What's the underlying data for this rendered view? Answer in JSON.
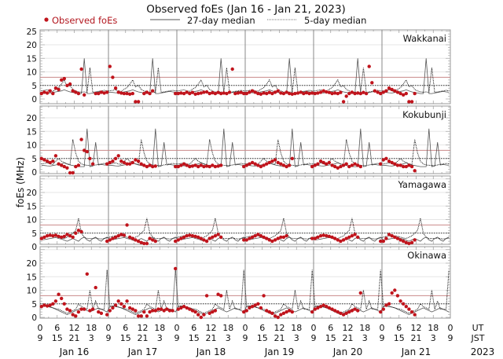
{
  "chart_data": {
    "type": "scatter",
    "title": "Observed foEs (Jan 16 - Jan 21, 2023)",
    "ylabel": "foEs (MHz)",
    "xlabel": "",
    "ylim": [
      -1.5,
      25
    ],
    "legend": {
      "placement": "top",
      "entries": [
        {
          "label": "Observed foEs",
          "marker": "dot",
          "color": "#c0141c"
        },
        {
          "label": "27-day median",
          "marker": "solid-line",
          "color": "#555555"
        },
        {
          "label": "5-day median",
          "marker": "dotted-line",
          "color": "#111111"
        }
      ]
    },
    "reference_lines": {
      "red_level_mhz": 8,
      "dotted_level_mhz": 5
    },
    "x_axis": {
      "ut_label": "UT",
      "jst_label": "JST",
      "year_label": "2023",
      "ut_ticks": [
        "0",
        "6",
        "12",
        "18",
        "0",
        "6",
        "12",
        "18",
        "0",
        "6",
        "12",
        "18",
        "0",
        "6",
        "12",
        "18",
        "0",
        "6",
        "12",
        "18",
        "0",
        "6",
        "12",
        "18",
        "0"
      ],
      "jst_ticks": [
        "9",
        "15",
        "21",
        "3",
        "9",
        "15",
        "21",
        "3",
        "9",
        "15",
        "21",
        "3",
        "9",
        "15",
        "21",
        "3",
        "9",
        "15",
        "21",
        "3",
        "9",
        "15",
        "21",
        "3",
        "9"
      ],
      "days": [
        "Jan 16",
        "Jan 17",
        "Jan 18",
        "Jan 19",
        "Jan 20",
        "Jan 21"
      ]
    },
    "panels": [
      {
        "station": "Wakkanai",
        "y_ticks": [
          "0",
          "5",
          "10",
          "15",
          "20",
          "25"
        ],
        "median27_hourly": [
          2.5,
          2.4,
          2.3,
          2.2,
          2.4,
          2.6,
          2.8,
          3.0,
          3.4,
          3.0,
          2.6,
          2.4,
          2.2,
          2.0,
          2.0,
          15.0,
          2.0,
          2.0,
          2.2,
          2.4,
          2.6,
          2.8,
          2.6,
          2.5
        ],
        "median5_hourly": [
          3.0,
          3.2,
          3.4,
          3.0,
          2.8,
          3.6,
          4.2,
          5.5,
          7.0,
          4.5,
          5.0,
          3.5,
          3.0,
          2.6,
          2.5,
          2.6,
          2.4,
          11.5,
          2.4,
          2.6,
          2.8,
          3.0,
          3.2,
          3.0
        ],
        "observed": [
          [
            2.0,
            2.5,
            2.2,
            3.0,
            2.0,
            4.0,
            3.5,
            7.0,
            7.5,
            5.0,
            5.5,
            3.0,
            2.5,
            2.0,
            11.0,
            1.5,
            null,
            null,
            null,
            2.0,
            2.0,
            2.5,
            2.2,
            2.5
          ],
          [
            12.0,
            8.0,
            4.0,
            2.5,
            2.2,
            2.0,
            2.0,
            1.8,
            2.0,
            -1.0,
            -1.0,
            null,
            2.0,
            2.5,
            2.0,
            3.0,
            null,
            null,
            null,
            null,
            null,
            null,
            null,
            2.0
          ],
          [
            2.0,
            2.2,
            2.0,
            2.5,
            2.0,
            2.4,
            1.8,
            2.0,
            2.2,
            2.5,
            2.6,
            2.0,
            2.3,
            2.0,
            2.4,
            2.0,
            2.2,
            2.0,
            2.5,
            11.0,
            2.0,
            2.2,
            2.4,
            2.0
          ],
          [
            2.0,
            2.5,
            3.0,
            2.5,
            2.0,
            1.8,
            2.2,
            2.0,
            2.4,
            2.0,
            2.5,
            3.0,
            2.2,
            2.0,
            2.5,
            2.0,
            1.8,
            2.0,
            2.2,
            2.5,
            2.0,
            2.3,
            2.0,
            2.2
          ],
          [
            2.0,
            2.2,
            2.5,
            3.0,
            2.6,
            2.4,
            2.0,
            2.2,
            2.0,
            2.4,
            -1.0,
            1.0,
            2.0,
            2.5,
            2.0,
            2.2,
            2.0,
            2.4,
            2.0,
            12.0,
            6.0,
            3.0,
            2.5,
            2.0
          ],
          [
            2.5,
            3.0,
            4.0,
            3.5,
            3.0,
            2.5,
            2.0,
            1.5,
            2.0,
            -1.0,
            -1.0,
            2.0,
            null,
            null,
            null,
            null,
            null,
            null,
            null,
            null,
            null,
            null,
            null,
            null
          ]
        ]
      },
      {
        "station": "Kokubunji",
        "y_ticks": [
          "0",
          "5",
          "10",
          "15",
          "20"
        ],
        "median27_hourly": [
          2.5,
          2.4,
          2.3,
          2.2,
          2.4,
          2.6,
          2.8,
          3.0,
          3.4,
          3.0,
          2.6,
          2.4,
          2.2,
          2.0,
          2.0,
          2.0,
          16.0,
          2.0,
          2.2,
          11.0,
          2.6,
          2.8,
          2.6,
          2.5
        ],
        "median5_hourly": [
          3.0,
          3.2,
          3.4,
          3.0,
          2.8,
          4.0,
          5.0,
          4.0,
          3.5,
          3.0,
          2.8,
          12.0,
          7.0,
          4.0,
          3.0,
          2.6,
          2.5,
          2.4,
          2.4,
          2.6,
          2.8,
          3.0,
          3.2,
          3.0
        ],
        "observed": [
          [
            5.0,
            4.5,
            4.0,
            3.5,
            4.0,
            6.0,
            3.0,
            2.5,
            2.0,
            1.5,
            -1.0,
            -1.0,
            2.0,
            2.5,
            12.0,
            8.0,
            7.5,
            5.0,
            3.0,
            null,
            null,
            null,
            null,
            3.0
          ],
          [
            3.5,
            4.0,
            5.0,
            6.0,
            4.0,
            3.5,
            3.0,
            3.0,
            3.5,
            4.5,
            4.0,
            3.0,
            2.5,
            2.0,
            2.5,
            2.0,
            2.2,
            null,
            null,
            null,
            null,
            null,
            null,
            2.0
          ],
          [
            2.0,
            2.5,
            3.0,
            2.5,
            2.0,
            2.2,
            2.5,
            2.0,
            2.5,
            2.0,
            2.2,
            2.0,
            2.5,
            2.0,
            2.2,
            2.5,
            null,
            null,
            null,
            null,
            null,
            null,
            null,
            2.0
          ],
          [
            2.5,
            3.0,
            3.5,
            3.0,
            2.5,
            2.0,
            2.5,
            3.0,
            3.5,
            4.0,
            4.5,
            3.5,
            3.0,
            2.5,
            2.0,
            2.5,
            5.0,
            null,
            null,
            null,
            null,
            null,
            null,
            2.0
          ],
          [
            2.5,
            3.0,
            4.0,
            3.5,
            3.0,
            3.5,
            2.5,
            2.0,
            1.5,
            2.0,
            2.5,
            3.0,
            2.0,
            2.5,
            3.0,
            2.5,
            2.0,
            null,
            null,
            null,
            null,
            null,
            null,
            3.0
          ],
          [
            4.5,
            5.0,
            4.0,
            3.5,
            3.0,
            2.5,
            2.5,
            2.0,
            2.0,
            2.5,
            2.0,
            0.5,
            null,
            null,
            null,
            null,
            null,
            null,
            null,
            null,
            null,
            null,
            null,
            null
          ]
        ]
      },
      {
        "station": "Yamagawa",
        "y_ticks": [
          "0",
          "5",
          "10",
          "15",
          "20"
        ],
        "median27_hourly": [
          2.5,
          2.6,
          2.8,
          3.0,
          3.2,
          3.4,
          3.0,
          2.8,
          2.4,
          2.0,
          2.5,
          3.0,
          2.5,
          2.0,
          3.0,
          3.5,
          2.5,
          2.0,
          3.0,
          3.5,
          2.5,
          2.0,
          3.0,
          3.5
        ],
        "median5_hourly": [
          3.5,
          3.8,
          4.0,
          4.2,
          4.0,
          3.8,
          3.5,
          3.2,
          3.0,
          3.5,
          4.0,
          5.0,
          6.0,
          10.5,
          5.0,
          3.5,
          3.0,
          3.0,
          3.0,
          3.2,
          3.0,
          2.8,
          3.0,
          3.2
        ],
        "observed": [
          [
            3.0,
            3.5,
            4.0,
            4.2,
            4.0,
            4.2,
            3.8,
            3.5,
            3.8,
            4.5,
            4.0,
            3.5,
            5.0,
            6.0,
            5.5,
            null,
            null,
            null,
            null,
            null,
            null,
            null,
            null,
            2.0
          ],
          [
            2.5,
            3.0,
            3.5,
            4.0,
            4.5,
            4.2,
            8.0,
            3.5,
            3.0,
            2.5,
            2.0,
            1.5,
            1.0,
            0.5,
            3.0,
            2.5,
            2.0,
            null,
            null,
            null,
            null,
            null,
            null,
            2.0
          ],
          [
            2.5,
            3.0,
            3.5,
            4.0,
            4.2,
            4.0,
            3.8,
            3.5,
            3.0,
            2.5,
            2.0,
            3.0,
            3.5,
            4.0,
            4.5,
            3.5,
            null,
            null,
            null,
            null,
            null,
            null,
            null,
            2.5
          ],
          [
            2.5,
            3.0,
            3.5,
            4.0,
            4.5,
            4.0,
            3.5,
            3.0,
            2.5,
            2.0,
            2.5,
            3.0,
            3.5,
            3.5,
            4.0,
            null,
            null,
            null,
            null,
            null,
            null,
            null,
            null,
            3.0
          ],
          [
            3.0,
            3.5,
            4.0,
            4.2,
            4.0,
            3.8,
            3.5,
            3.0,
            2.5,
            2.0,
            2.5,
            3.0,
            3.5,
            4.0,
            4.5,
            3.5,
            null,
            null,
            null,
            null,
            null,
            null,
            null,
            2.0
          ],
          [
            2.0,
            3.0,
            4.5,
            4.0,
            3.5,
            3.0,
            2.5,
            2.0,
            1.5,
            1.0,
            1.5,
            2.5,
            null,
            null,
            null,
            null,
            null,
            null,
            null,
            null,
            null,
            null,
            null,
            null
          ]
        ]
      },
      {
        "station": "Okinawa",
        "y_ticks": [
          "0",
          "5",
          "10",
          "15",
          "20"
        ],
        "median27_hourly": [
          4.0,
          4.2,
          4.0,
          3.8,
          3.5,
          3.0,
          2.5,
          2.0,
          1.5,
          1.0,
          1.5,
          2.0,
          2.5,
          3.0,
          3.5,
          3.0,
          2.5,
          2.0,
          2.5,
          3.0,
          3.5,
          3.0,
          2.5,
          2.0
        ],
        "median5_hourly": [
          4.0,
          4.2,
          4.0,
          3.8,
          3.5,
          3.2,
          3.0,
          2.5,
          2.0,
          1.5,
          2.0,
          2.5,
          3.0,
          5.0,
          4.0,
          3.5,
          3.0,
          10.0,
          3.0,
          6.0,
          3.0,
          3.0,
          3.0,
          17.5
        ],
        "observed": [
          [
            4.0,
            4.5,
            4.2,
            4.5,
            5.0,
            6.0,
            8.5,
            7.0,
            5.0,
            3.0,
            2.5,
            1.0,
            0.5,
            2.0,
            3.0,
            3.0,
            16.0,
            2.5,
            3.0,
            11.0,
            2.0,
            1.5,
            null,
            1.0
          ],
          [
            2.5,
            3.5,
            4.5,
            6.0,
            5.0,
            4.0,
            6.0,
            3.5,
            3.0,
            2.5,
            0.5,
            0.5,
            2.0,
            0.5,
            2.0,
            2.5,
            2.5,
            3.0,
            3.0,
            2.5,
            3.0,
            2.5,
            2.5,
            18.0
          ],
          [
            3.0,
            3.5,
            4.0,
            3.5,
            3.0,
            2.5,
            2.0,
            1.0,
            -1.0,
            1.0,
            8.0,
            1.5,
            2.0,
            2.5,
            8.5,
            8.0,
            null,
            null,
            null,
            null,
            null,
            null,
            null,
            2.0
          ],
          [
            2.5,
            3.5,
            4.0,
            4.5,
            5.0,
            3.5,
            8.0,
            2.5,
            2.0,
            1.5,
            0.5,
            -0.5,
            1.0,
            1.5,
            2.0,
            2.5,
            2.0,
            null,
            null,
            null,
            null,
            null,
            null,
            2.0
          ],
          [
            3.0,
            3.5,
            4.0,
            4.5,
            4.0,
            3.5,
            3.0,
            2.5,
            2.0,
            1.5,
            1.0,
            1.5,
            2.0,
            2.5,
            3.0,
            2.5,
            9.0,
            null,
            null,
            null,
            null,
            null,
            null,
            2.0
          ],
          [
            3.0,
            4.5,
            5.0,
            9.0,
            10.0,
            8.0,
            6.0,
            5.0,
            4.0,
            3.0,
            2.0,
            1.0,
            null,
            null,
            null,
            null,
            null,
            null,
            null,
            null,
            null,
            null,
            null,
            null
          ]
        ]
      }
    ]
  }
}
